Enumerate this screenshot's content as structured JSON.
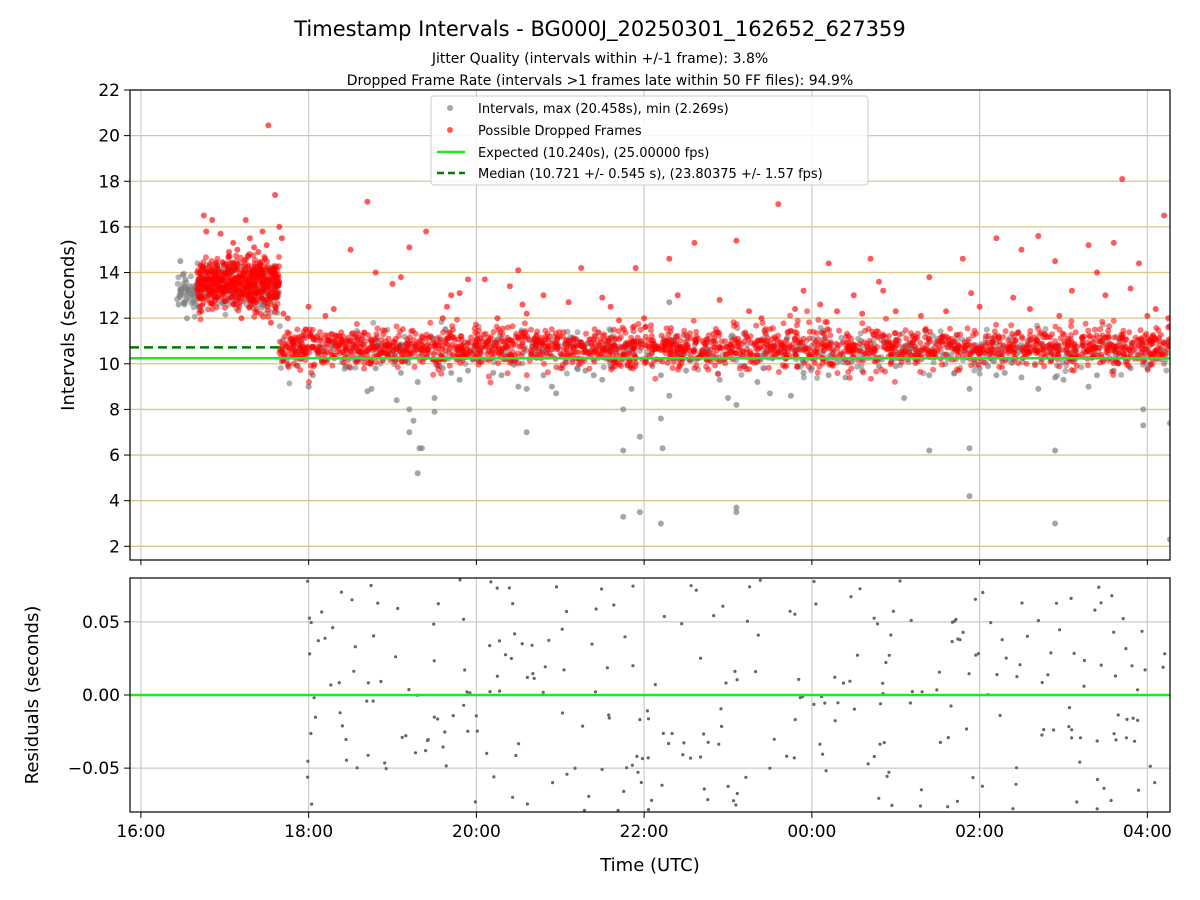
{
  "chart_data": [
    {
      "type": "scatter",
      "title": "Timestamp Intervals - BG000J_20250301_162652_627359",
      "subtitle_lines": [
        "Jitter Quality (intervals within +/-1 frame): 3.8%",
        "Dropped Frame Rate (intervals >1 frames late within 50 FF files): 94.9%"
      ],
      "ylabel": "Intervals (seconds)",
      "xlim_hours": [
        15.87,
        28.27
      ],
      "ylim": [
        1.4,
        22
      ],
      "y_ticks": [
        2,
        4,
        6,
        8,
        10,
        12,
        14,
        16,
        18,
        20,
        22
      ],
      "x_tick_positions_hours": [
        16,
        18,
        20,
        22,
        24,
        26,
        28
      ],
      "x_tick_labels": [
        "16:00",
        "18:00",
        "20:00",
        "22:00",
        "00:00",
        "02:00",
        "04:00"
      ],
      "grid": {
        "x": true,
        "y": true,
        "y_color": "#d8c88c"
      },
      "legend": {
        "placement": "top-center",
        "entries": [
          "Intervals, max (20.458s), min (2.269s)",
          "Possible Dropped Frames",
          "Expected (10.240s), (25.00000 fps)",
          "Median (10.721 +/- 0.545 s), (23.80375 +/- 1.57 fps)"
        ]
      },
      "expected_interval": 10.24,
      "median_interval": 10.721,
      "median_line_end_hours": 17.65,
      "series": [
        {
          "name": "Intervals, max (20.458s), min (2.269s)",
          "color": "#808080",
          "points": [
            [
              16.47,
              14.5
            ],
            [
              16.5,
              13.9
            ],
            [
              16.52,
              12.6
            ],
            [
              16.55,
              12.0
            ],
            [
              16.45,
              12.6
            ],
            [
              16.48,
              13.2
            ],
            [
              16.53,
              13.7
            ],
            [
              16.58,
              12.9
            ],
            [
              18.05,
              9.5
            ],
            [
              18.0,
              9.0
            ],
            [
              18.7,
              8.8
            ],
            [
              18.75,
              8.9
            ],
            [
              19.05,
              8.4
            ],
            [
              19.1,
              9.6
            ],
            [
              19.2,
              8.0
            ],
            [
              19.2,
              7.0
            ],
            [
              19.25,
              7.5
            ],
            [
              19.3,
              9.2
            ],
            [
              19.32,
              6.3
            ],
            [
              19.35,
              6.3
            ],
            [
              19.3,
              5.2
            ],
            [
              19.5,
              8.5
            ],
            [
              19.5,
              7.9
            ],
            [
              19.6,
              9.8
            ],
            [
              19.7,
              9.6
            ],
            [
              19.8,
              9.3
            ],
            [
              20.3,
              9.5
            ],
            [
              20.5,
              9.0
            ],
            [
              20.6,
              8.9
            ],
            [
              20.6,
              7.0
            ],
            [
              20.8,
              9.5
            ],
            [
              20.9,
              9.0
            ],
            [
              20.95,
              8.7
            ],
            [
              21.2,
              9.8
            ],
            [
              21.3,
              9.7
            ],
            [
              21.4,
              9.5
            ],
            [
              21.5,
              9.3
            ],
            [
              21.6,
              9.9
            ],
            [
              21.75,
              6.2
            ],
            [
              21.75,
              8.0
            ],
            [
              21.75,
              3.3
            ],
            [
              21.85,
              8.9
            ],
            [
              21.95,
              6.8
            ],
            [
              21.95,
              3.5
            ],
            [
              22.1,
              9.9
            ],
            [
              22.2,
              9.5
            ],
            [
              22.2,
              7.6
            ],
            [
              22.22,
              6.3
            ],
            [
              22.2,
              3.0
            ],
            [
              22.3,
              8.6
            ],
            [
              22.3,
              12.7
            ],
            [
              22.9,
              9.3
            ],
            [
              23.0,
              8.5
            ],
            [
              23.1,
              8.2
            ],
            [
              23.1,
              3.7
            ],
            [
              23.1,
              3.5
            ],
            [
              23.35,
              9.2
            ],
            [
              23.5,
              8.7
            ],
            [
              23.75,
              8.6
            ],
            [
              23.9,
              9.6
            ],
            [
              24.2,
              9.5
            ],
            [
              24.4,
              9.4
            ],
            [
              24.6,
              9.7
            ],
            [
              24.8,
              9.9
            ],
            [
              25.1,
              8.5
            ],
            [
              25.4,
              9.5
            ],
            [
              25.4,
              6.2
            ],
            [
              25.7,
              9.6
            ],
            [
              25.88,
              8.9
            ],
            [
              25.88,
              6.3
            ],
            [
              25.88,
              4.2
            ],
            [
              26.0,
              9.8
            ],
            [
              26.2,
              9.5
            ],
            [
              26.3,
              9.6
            ],
            [
              26.5,
              9.4
            ],
            [
              26.7,
              8.9
            ],
            [
              26.9,
              9.4
            ],
            [
              26.9,
              6.2
            ],
            [
              26.9,
              3.0
            ],
            [
              27.0,
              9.3
            ],
            [
              27.3,
              9.0
            ],
            [
              27.4,
              9.5
            ],
            [
              27.6,
              9.7
            ],
            [
              27.95,
              8.0
            ],
            [
              27.95,
              7.3
            ],
            [
              28.0,
              9.8
            ],
            [
              28.2,
              10.0
            ],
            [
              28.27,
              7.4
            ],
            [
              28.27,
              2.3
            ],
            [
              18.8,
              9.8
            ],
            [
              19.9,
              9.7
            ],
            [
              20.2,
              9.6
            ],
            [
              21.0,
              9.8
            ],
            [
              22.5,
              9.7
            ],
            [
              23.2,
              9.9
            ],
            [
              24.0,
              9.8
            ],
            [
              25.0,
              9.9
            ],
            [
              26.1,
              9.9
            ],
            [
              27.8,
              9.8
            ]
          ]
        },
        {
          "name": "Possible Dropped Frames",
          "color": "#ff0000",
          "points": [
            [
              16.75,
              16.5
            ],
            [
              16.78,
              15.8
            ],
            [
              16.85,
              16.3
            ],
            [
              16.95,
              15.7
            ],
            [
              17.05,
              14.9
            ],
            [
              17.1,
              15.3
            ],
            [
              17.15,
              15.0
            ],
            [
              17.25,
              16.3
            ],
            [
              17.3,
              15.5
            ],
            [
              17.35,
              15.1
            ],
            [
              17.4,
              14.9
            ],
            [
              17.45,
              15.8
            ],
            [
              17.48,
              14.6
            ],
            [
              17.5,
              15.2
            ],
            [
              17.52,
              20.45
            ],
            [
              17.6,
              17.4
            ],
            [
              17.65,
              16.0
            ],
            [
              17.68,
              15.5
            ],
            [
              17.2,
              12.0
            ],
            [
              17.3,
              12.5
            ],
            [
              17.6,
              12.5
            ],
            [
              17.7,
              12.2
            ],
            [
              17.75,
              12.0
            ],
            [
              17.55,
              11.8
            ],
            [
              16.7,
              12.9
            ],
            [
              16.72,
              12.3
            ],
            [
              18.0,
              12.5
            ],
            [
              18.2,
              12.1
            ],
            [
              18.3,
              12.4
            ],
            [
              18.5,
              15.0
            ],
            [
              18.7,
              17.1
            ],
            [
              18.8,
              14.0
            ],
            [
              19.0,
              13.5
            ],
            [
              19.1,
              13.8
            ],
            [
              19.2,
              15.1
            ],
            [
              19.4,
              15.8
            ],
            [
              19.6,
              12.0
            ],
            [
              19.65,
              12.5
            ],
            [
              19.7,
              13.0
            ],
            [
              19.8,
              13.1
            ],
            [
              19.9,
              13.7
            ],
            [
              20.1,
              13.7
            ],
            [
              20.25,
              12.0
            ],
            [
              20.4,
              13.4
            ],
            [
              20.5,
              14.1
            ],
            [
              20.55,
              12.6
            ],
            [
              20.6,
              12.2
            ],
            [
              20.8,
              13.0
            ],
            [
              21.1,
              12.7
            ],
            [
              21.25,
              14.2
            ],
            [
              21.5,
              12.9
            ],
            [
              21.6,
              12.5
            ],
            [
              21.7,
              11.9
            ],
            [
              21.9,
              14.2
            ],
            [
              22.0,
              12.0
            ],
            [
              22.3,
              14.6
            ],
            [
              22.4,
              13.0
            ],
            [
              22.6,
              15.3
            ],
            [
              22.9,
              12.8
            ],
            [
              23.1,
              15.4
            ],
            [
              23.25,
              12.3
            ],
            [
              23.4,
              12.0
            ],
            [
              23.6,
              17.0
            ],
            [
              23.8,
              12.4
            ],
            [
              23.9,
              13.2
            ],
            [
              24.1,
              12.6
            ],
            [
              24.2,
              14.4
            ],
            [
              24.3,
              12.3
            ],
            [
              24.5,
              13.0
            ],
            [
              24.6,
              12.2
            ],
            [
              24.7,
              14.6
            ],
            [
              24.8,
              13.6
            ],
            [
              24.85,
              13.2
            ],
            [
              25.0,
              12.3
            ],
            [
              25.3,
              12.1
            ],
            [
              25.4,
              13.8
            ],
            [
              25.6,
              12.3
            ],
            [
              25.8,
              14.6
            ],
            [
              25.9,
              13.1
            ],
            [
              26.0,
              12.5
            ],
            [
              26.2,
              15.5
            ],
            [
              26.4,
              12.9
            ],
            [
              26.5,
              15.0
            ],
            [
              26.6,
              12.4
            ],
            [
              26.7,
              15.6
            ],
            [
              26.9,
              14.5
            ],
            [
              26.95,
              12.1
            ],
            [
              27.1,
              13.2
            ],
            [
              27.3,
              15.2
            ],
            [
              27.4,
              14.0
            ],
            [
              27.5,
              13.0
            ],
            [
              27.6,
              15.3
            ],
            [
              27.7,
              18.1
            ],
            [
              27.8,
              13.3
            ],
            [
              27.9,
              14.4
            ],
            [
              28.0,
              12.1
            ],
            [
              28.1,
              12.4
            ],
            [
              28.2,
              16.5
            ],
            [
              28.25,
              12.0
            ]
          ],
          "dense_bands": [
            {
              "x": [
                16.67,
                17.65
              ],
              "y_center": 13.5,
              "y_spread": 0.55,
              "count": 520
            },
            {
              "x": [
                17.65,
                28.27
              ],
              "y_center": 10.7,
              "y_spread": 0.45,
              "count": 1900
            }
          ]
        }
      ]
    },
    {
      "type": "scatter",
      "title": "",
      "xlabel": "Time (UTC)",
      "ylabel": "Residuals (seconds)",
      "xlim_hours": [
        15.87,
        28.27
      ],
      "ylim": [
        -0.08,
        0.08
      ],
      "y_ticks": [
        -0.05,
        0.0,
        0.05
      ],
      "y_tick_labels": [
        "−0.05",
        "0.00",
        "0.05"
      ],
      "x_tick_positions_hours": [
        16,
        18,
        20,
        22,
        24,
        26,
        28
      ],
      "x_tick_labels": [
        "16:00",
        "18:00",
        "20:00",
        "22:00",
        "00:00",
        "02:00",
        "04:00"
      ],
      "grid": {
        "x": true,
        "y": true
      },
      "zero_line_color": "#22e622",
      "series": [
        {
          "color": "#666666",
          "x_range": [
            17.98,
            28.27
          ],
          "y_range": [
            -0.079,
            0.079
          ],
          "count": 300
        }
      ]
    }
  ]
}
